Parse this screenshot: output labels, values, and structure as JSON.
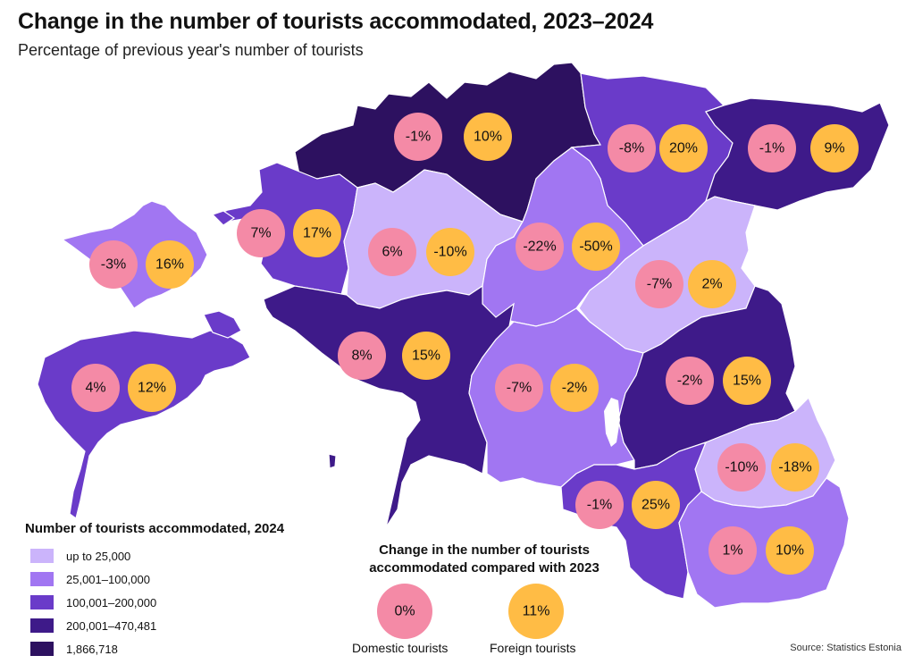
{
  "title": "Change in the number of tourists accommodated, 2023–2024",
  "subtitle": "Percentage of previous year's number of tourists",
  "source": "Source: Statistics Estonia",
  "colors": {
    "c1": "#cbb4fb",
    "c2": "#a176f2",
    "c3": "#6a3bc9",
    "c4": "#3e1a89",
    "c5": "#2d1160",
    "domestic": "#f48aa6",
    "foreign": "#ffbc45"
  },
  "legend": {
    "title": "Number of tourists accommodated, 2024",
    "items": [
      {
        "label": "up to 25,000",
        "color": "#cbb4fb"
      },
      {
        "label": "25,001–100,000",
        "color": "#a176f2"
      },
      {
        "label": "100,001–200,000",
        "color": "#6a3bc9"
      },
      {
        "label": "200,001–470,481",
        "color": "#3e1a89"
      },
      {
        "label": "1,866,718",
        "color": "#2d1160"
      }
    ]
  },
  "bubble_legend": {
    "title_line1": "Change in the number of tourists",
    "title_line2": "accommodated compared with 2023",
    "domestic_value": "0%",
    "foreign_value": "11%",
    "domestic_label": "Domestic tourists",
    "foreign_label": "Foreign tourists"
  },
  "regions": [
    {
      "id": "harju",
      "domestic": "-1%",
      "foreign": "10%"
    },
    {
      "id": "laane-viru",
      "domestic": "-8%",
      "foreign": "20%"
    },
    {
      "id": "ida-viru",
      "domestic": "-1%",
      "foreign": "9%"
    },
    {
      "id": "hiiu",
      "domestic": "-3%",
      "foreign": "16%"
    },
    {
      "id": "laane",
      "domestic": "7%",
      "foreign": "17%"
    },
    {
      "id": "rapla",
      "domestic": "6%",
      "foreign": "-10%"
    },
    {
      "id": "jarva",
      "domestic": "-22%",
      "foreign": "-50%"
    },
    {
      "id": "jogeva",
      "domestic": "-7%",
      "foreign": "2%"
    },
    {
      "id": "saare",
      "domestic": "4%",
      "foreign": "12%"
    },
    {
      "id": "parnu",
      "domestic": "8%",
      "foreign": "15%"
    },
    {
      "id": "viljandi",
      "domestic": "-7%",
      "foreign": "-2%"
    },
    {
      "id": "tartu",
      "domestic": "-2%",
      "foreign": "15%"
    },
    {
      "id": "polva",
      "domestic": "-10%",
      "foreign": "-18%"
    },
    {
      "id": "valga",
      "domestic": "-1%",
      "foreign": "25%"
    },
    {
      "id": "voru",
      "domestic": "1%",
      "foreign": "10%"
    }
  ]
}
